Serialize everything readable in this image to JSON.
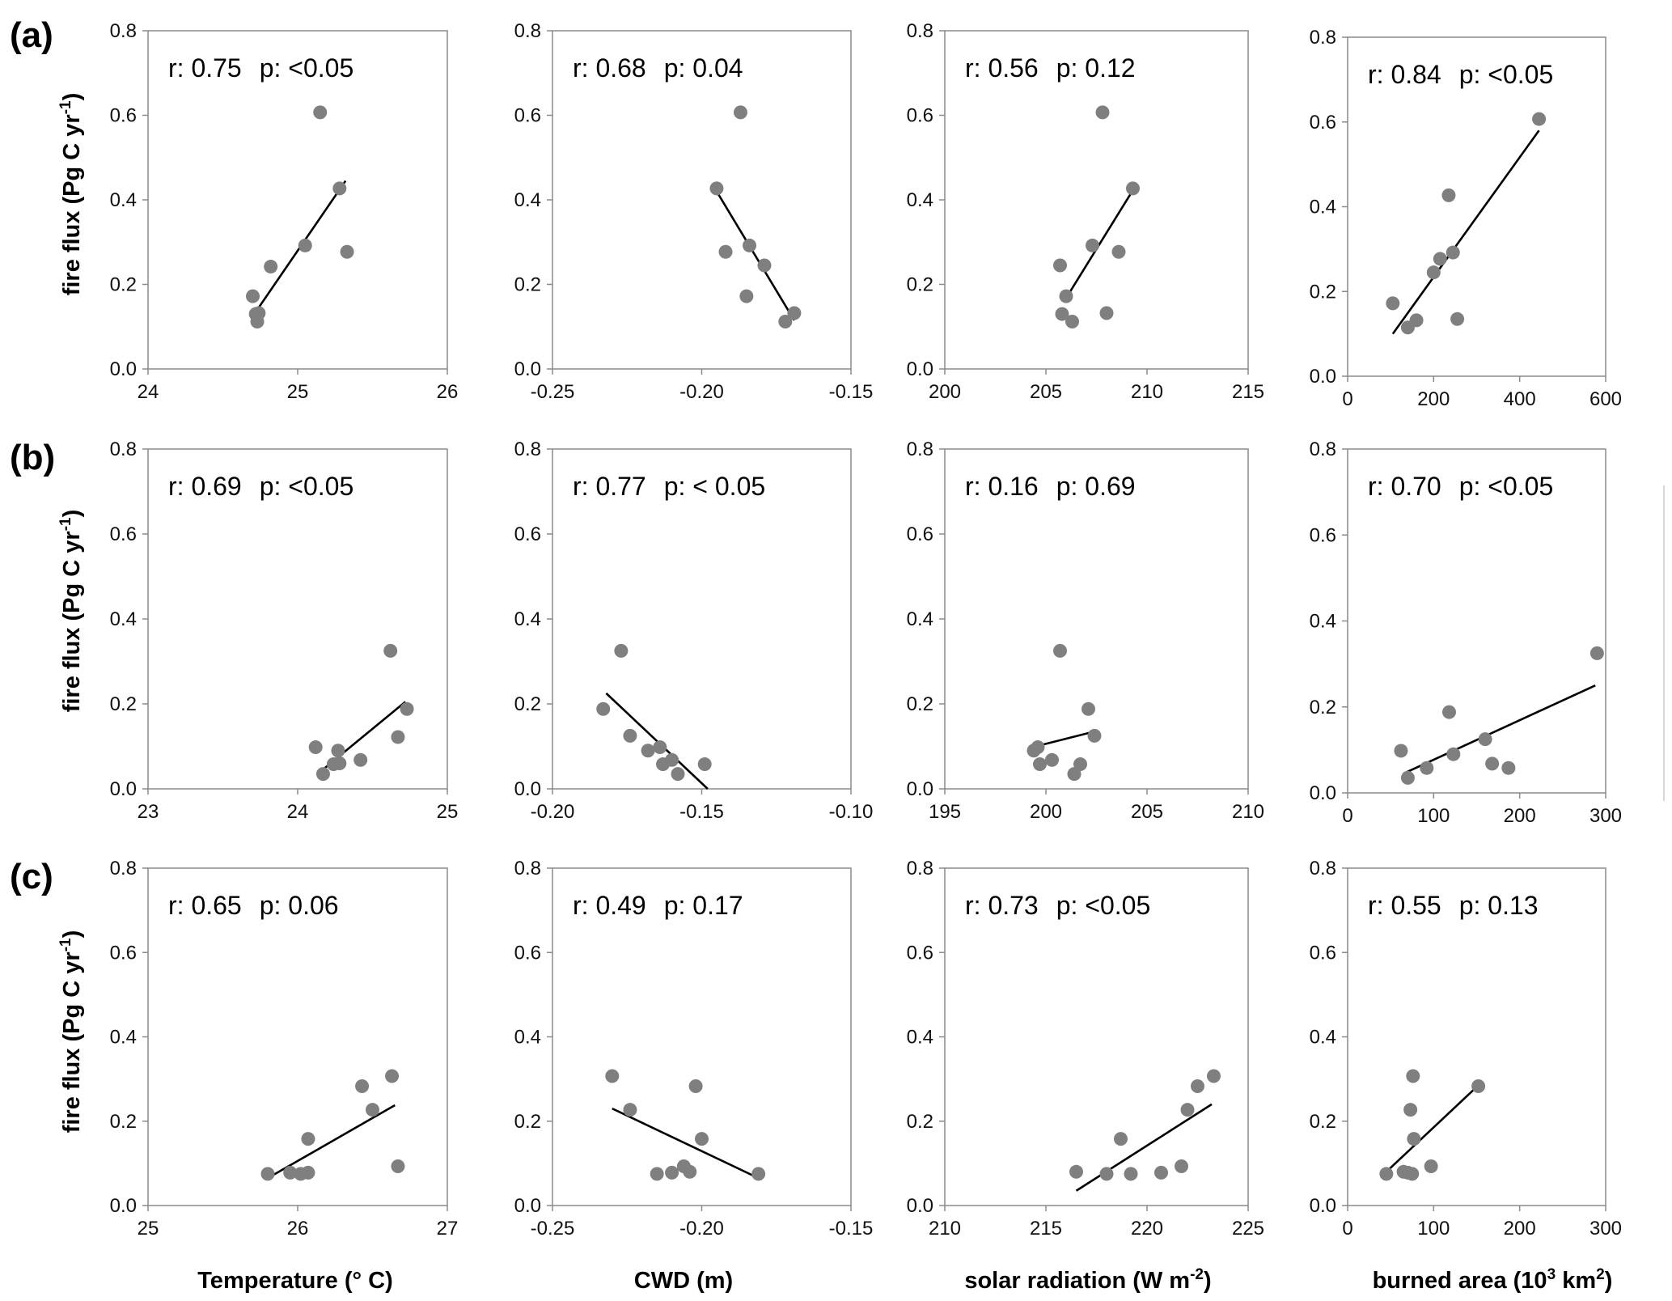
{
  "figure": {
    "row_labels": [
      "(a)",
      "(b)",
      "(c)"
    ],
    "y_label": "fire flux (Pg C yr",
    "y_label_sup": "-1",
    "y_label_end": ")",
    "x_labels": [
      {
        "text": "Temperature (° C)",
        "sup": "",
        "end": ""
      },
      {
        "text": "CWD (m)",
        "sup": "",
        "end": ""
      },
      {
        "text": "solar radiation  (W m",
        "sup": "-2",
        "end": ")"
      },
      {
        "text": "burned area (10",
        "sup": "3",
        "end": " km",
        "sup2": "2",
        "end2": ")"
      }
    ],
    "colors": {
      "point": "#7f7f7f",
      "line": "#000000",
      "frame": "#8a8a8a"
    }
  },
  "chart_data": [
    {
      "type": "scatter",
      "row": "(a)",
      "col": 0,
      "xlim": [
        24,
        26
      ],
      "xticks": [
        24,
        25,
        26
      ],
      "ylim": [
        0,
        0.8
      ],
      "yticks": [
        "0.0",
        "0.2",
        "0.4",
        "0.6",
        "0.8"
      ],
      "r": "r: 0.75",
      "p": "p: <0.05",
      "points": [
        [
          24.7,
          0.172
        ],
        [
          24.72,
          0.13
        ],
        [
          24.74,
          0.132
        ],
        [
          24.73,
          0.112
        ],
        [
          24.82,
          0.242
        ],
        [
          25.05,
          0.292
        ],
        [
          25.15,
          0.607
        ],
        [
          25.28,
          0.427
        ],
        [
          25.33,
          0.277
        ]
      ],
      "trend": [
        [
          24.72,
          0.135
        ],
        [
          25.32,
          0.445
        ]
      ]
    },
    {
      "type": "scatter",
      "row": "(a)",
      "col": 1,
      "xlim": [
        -0.25,
        -0.15
      ],
      "xticks": [
        "-0.25",
        "-0.20",
        "-0.15"
      ],
      "ylim": [
        0,
        0.8
      ],
      "yticks": [
        "0.0",
        "0.2",
        "0.4",
        "0.6",
        "0.8"
      ],
      "r": "r: 0.68",
      "p": "p: 0.04",
      "points": [
        [
          -0.195,
          0.427
        ],
        [
          -0.192,
          0.277
        ],
        [
          -0.187,
          0.607
        ],
        [
          -0.185,
          0.172
        ],
        [
          -0.184,
          0.292
        ],
        [
          -0.179,
          0.245
        ],
        [
          -0.172,
          0.112
        ],
        [
          -0.169,
          0.132
        ]
      ],
      "trend": [
        [
          -0.195,
          0.42
        ],
        [
          -0.169,
          0.115
        ]
      ]
    },
    {
      "type": "scatter",
      "row": "(a)",
      "col": 2,
      "xlim": [
        200,
        215
      ],
      "xticks": [
        200,
        205,
        210,
        215
      ],
      "ylim": [
        0,
        0.8
      ],
      "yticks": [
        "0.0",
        "0.2",
        "0.4",
        "0.6",
        "0.8"
      ],
      "r": "r: 0.56",
      "p": "p: 0.12",
      "points": [
        [
          205.7,
          0.245
        ],
        [
          205.8,
          0.13
        ],
        [
          206.0,
          0.172
        ],
        [
          206.3,
          0.112
        ],
        [
          207.3,
          0.292
        ],
        [
          207.8,
          0.607
        ],
        [
          208.0,
          0.132
        ],
        [
          208.6,
          0.277
        ],
        [
          209.3,
          0.427
        ]
      ],
      "trend": [
        [
          205.9,
          0.16
        ],
        [
          209.2,
          0.415
        ]
      ]
    },
    {
      "type": "scatter",
      "row": "(a)",
      "col": 3,
      "xlim": [
        0,
        600
      ],
      "xticks": [
        0,
        200,
        400,
        600
      ],
      "ylim": [
        0,
        0.8
      ],
      "yticks": [
        "0.0",
        "0.2",
        "0.4",
        "0.6",
        "0.8"
      ],
      "r": "r: 0.84",
      "p": "p: <0.05",
      "points": [
        [
          105,
          0.172
        ],
        [
          140,
          0.115
        ],
        [
          160,
          0.132
        ],
        [
          200,
          0.245
        ],
        [
          215,
          0.277
        ],
        [
          235,
          0.427
        ],
        [
          245,
          0.292
        ],
        [
          255,
          0.135
        ],
        [
          445,
          0.607
        ]
      ],
      "trend": [
        [
          105,
          0.1
        ],
        [
          445,
          0.58
        ]
      ]
    },
    {
      "type": "scatter",
      "row": "(b)",
      "col": 0,
      "xlim": [
        23,
        25
      ],
      "xticks": [
        23,
        24,
        25
      ],
      "ylim": [
        0,
        0.8
      ],
      "yticks": [
        "0.0",
        "0.2",
        "0.4",
        "0.6",
        "0.8"
      ],
      "r": "r: 0.69",
      "p": "p: <0.05",
      "points": [
        [
          24.12,
          0.098
        ],
        [
          24.17,
          0.035
        ],
        [
          24.24,
          0.058
        ],
        [
          24.27,
          0.09
        ],
        [
          24.28,
          0.06
        ],
        [
          24.42,
          0.068
        ],
        [
          24.62,
          0.325
        ],
        [
          24.67,
          0.122
        ],
        [
          24.73,
          0.188
        ]
      ],
      "trend": [
        [
          24.15,
          0.04
        ],
        [
          24.72,
          0.205
        ]
      ]
    },
    {
      "type": "scatter",
      "row": "(b)",
      "col": 1,
      "xlim": [
        -0.2,
        -0.1
      ],
      "xticks": [
        "-0.20",
        "-0.15",
        "-0.10"
      ],
      "ylim": [
        0,
        0.8
      ],
      "yticks": [
        "0.0",
        "0.2",
        "0.4",
        "0.6",
        "0.8"
      ],
      "r": "r: 0.77",
      "p": "p: < 0.05",
      "points": [
        [
          -0.183,
          0.188
        ],
        [
          -0.177,
          0.325
        ],
        [
          -0.174,
          0.125
        ],
        [
          -0.168,
          0.09
        ],
        [
          -0.164,
          0.098
        ],
        [
          -0.163,
          0.058
        ],
        [
          -0.16,
          0.068
        ],
        [
          -0.158,
          0.035
        ],
        [
          -0.149,
          0.058
        ]
      ],
      "trend": [
        [
          -0.182,
          0.225
        ],
        [
          -0.148,
          0.0
        ]
      ]
    },
    {
      "type": "scatter",
      "row": "(b)",
      "col": 2,
      "xlim": [
        195,
        210
      ],
      "xticks": [
        195,
        200,
        205,
        210
      ],
      "ylim": [
        0,
        0.8
      ],
      "yticks": [
        "0.0",
        "0.2",
        "0.4",
        "0.6",
        "0.8"
      ],
      "r": "r: 0.16",
      "p": "p: 0.69",
      "points": [
        [
          199.4,
          0.09
        ],
        [
          199.6,
          0.098
        ],
        [
          199.7,
          0.058
        ],
        [
          200.3,
          0.068
        ],
        [
          200.7,
          0.325
        ],
        [
          201.4,
          0.035
        ],
        [
          201.7,
          0.058
        ],
        [
          202.1,
          0.188
        ],
        [
          202.4,
          0.125
        ]
      ],
      "trend": [
        [
          199.5,
          0.1
        ],
        [
          202.4,
          0.135
        ]
      ]
    },
    {
      "type": "scatter",
      "row": "(b)",
      "col": 3,
      "xlim": [
        0,
        300
      ],
      "xticks": [
        0,
        100,
        200,
        300
      ],
      "ylim": [
        0,
        0.8
      ],
      "yticks": [
        "0.0",
        "0.2",
        "0.4",
        "0.6",
        "0.8"
      ],
      "r": "r: 0.70",
      "p": "p: <0.05",
      "points": [
        [
          62,
          0.098
        ],
        [
          70,
          0.035
        ],
        [
          92,
          0.058
        ],
        [
          118,
          0.188
        ],
        [
          123,
          0.09
        ],
        [
          160,
          0.125
        ],
        [
          168,
          0.068
        ],
        [
          187,
          0.058
        ],
        [
          290,
          0.325
        ]
      ],
      "trend": [
        [
          65,
          0.045
        ],
        [
          288,
          0.25
        ]
      ]
    },
    {
      "type": "scatter",
      "row": "(c)",
      "col": 0,
      "xlim": [
        25,
        27
      ],
      "xticks": [
        25,
        26,
        27
      ],
      "ylim": [
        0,
        0.8
      ],
      "yticks": [
        "0.0",
        "0.2",
        "0.4",
        "0.6",
        "0.8"
      ],
      "r": "r: 0.65",
      "p": "p: 0.06",
      "points": [
        [
          25.8,
          0.075
        ],
        [
          25.95,
          0.078
        ],
        [
          26.02,
          0.075
        ],
        [
          26.07,
          0.078
        ],
        [
          26.07,
          0.158
        ],
        [
          26.43,
          0.283
        ],
        [
          26.5,
          0.227
        ],
        [
          26.63,
          0.307
        ],
        [
          26.67,
          0.093
        ]
      ],
      "trend": [
        [
          25.8,
          0.065
        ],
        [
          26.65,
          0.238
        ]
      ]
    },
    {
      "type": "scatter",
      "row": "(c)",
      "col": 1,
      "xlim": [
        -0.25,
        -0.15
      ],
      "xticks": [
        "-0.25",
        "-0.20",
        "-0.15"
      ],
      "ylim": [
        0,
        0.8
      ],
      "yticks": [
        "0.0",
        "0.2",
        "0.4",
        "0.6",
        "0.8"
      ],
      "r": "r: 0.49",
      "p": "p: 0.17",
      "points": [
        [
          -0.23,
          0.307
        ],
        [
          -0.224,
          0.227
        ],
        [
          -0.215,
          0.075
        ],
        [
          -0.21,
          0.078
        ],
        [
          -0.206,
          0.093
        ],
        [
          -0.204,
          0.08
        ],
        [
          -0.202,
          0.283
        ],
        [
          -0.2,
          0.158
        ],
        [
          -0.181,
          0.075
        ]
      ],
      "trend": [
        [
          -0.23,
          0.23
        ],
        [
          -0.181,
          0.065
        ]
      ]
    },
    {
      "type": "scatter",
      "row": "(c)",
      "col": 2,
      "xlim": [
        210,
        225
      ],
      "xticks": [
        210,
        215,
        220,
        225
      ],
      "ylim": [
        0,
        0.8
      ],
      "yticks": [
        "0.0",
        "0.2",
        "0.4",
        "0.6",
        "0.8"
      ],
      "r": "r: 0.73",
      "p": "p: <0.05",
      "points": [
        [
          216.5,
          0.08
        ],
        [
          218,
          0.075
        ],
        [
          218.7,
          0.158
        ],
        [
          219.2,
          0.075
        ],
        [
          220.7,
          0.078
        ],
        [
          221.7,
          0.093
        ],
        [
          222,
          0.227
        ],
        [
          222.5,
          0.283
        ],
        [
          223.3,
          0.307
        ]
      ],
      "trend": [
        [
          216.5,
          0.035
        ],
        [
          223.2,
          0.24
        ]
      ]
    },
    {
      "type": "scatter",
      "row": "(c)",
      "col": 3,
      "xlim": [
        0,
        300
      ],
      "xticks": [
        0,
        100,
        200,
        300
      ],
      "ylim": [
        0,
        0.8
      ],
      "yticks": [
        "0.0",
        "0.2",
        "0.4",
        "0.6",
        "0.8"
      ],
      "r": "r: 0.55",
      "p": "p: 0.13",
      "points": [
        [
          45,
          0.075
        ],
        [
          65,
          0.08
        ],
        [
          70,
          0.078
        ],
        [
          73,
          0.227
        ],
        [
          75,
          0.075
        ],
        [
          76,
          0.307
        ],
        [
          77,
          0.158
        ],
        [
          97,
          0.093
        ],
        [
          152,
          0.283
        ]
      ],
      "trend": [
        [
          45,
          0.08
        ],
        [
          152,
          0.285
        ]
      ]
    }
  ]
}
